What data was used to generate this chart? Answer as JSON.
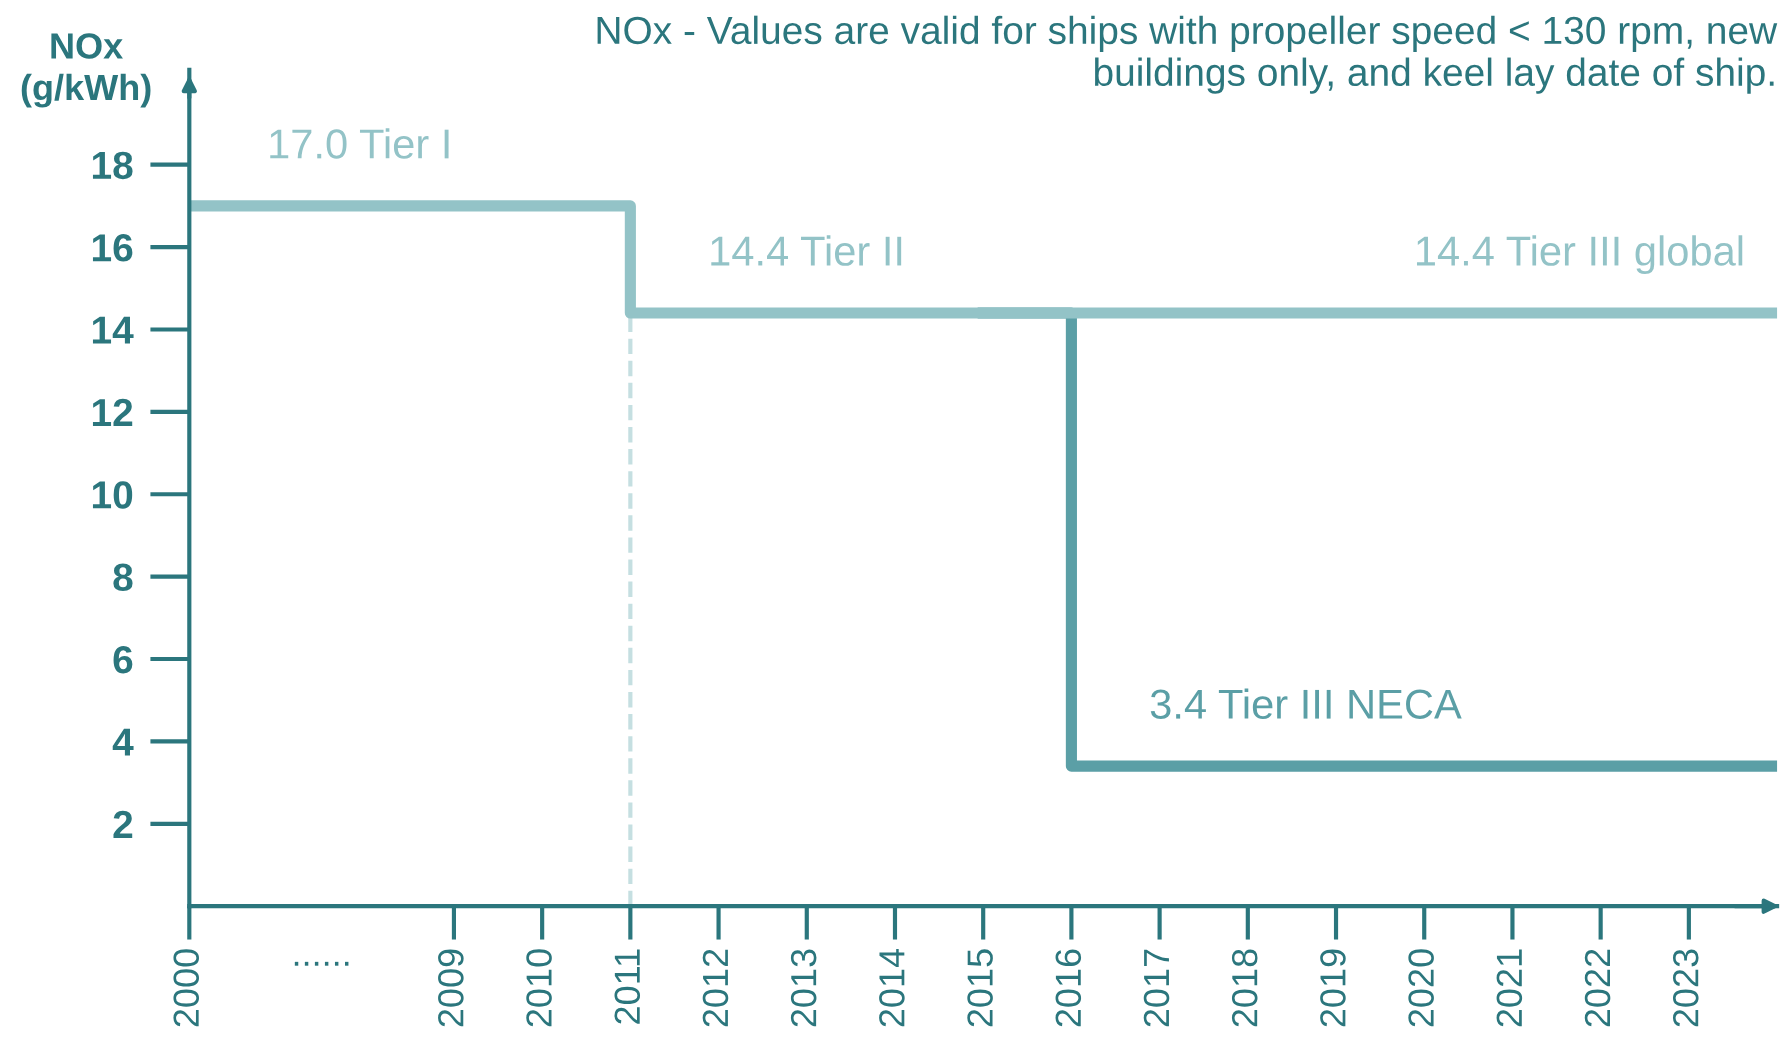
{
  "chart_data": {
    "type": "step",
    "title": "NOx - Values are valid for ships with propeller speed < 130 rpm, new buildings only, and keel lay date of ship.",
    "ylabel": "NOx\n(g/kWh)",
    "categories": [
      "2000",
      null,
      null,
      "2009",
      "2010",
      "2011",
      "2012",
      "2013",
      "2014",
      "2015",
      "2016",
      "2017",
      "2018",
      "2019",
      "2020",
      "2021",
      "2022",
      "2023",
      null
    ],
    "series": [
      {
        "color": "#5b9fa6",
        "values": [
          null,
          null,
          null,
          null,
          null,
          null,
          null,
          null,
          null,
          14.4,
          3.4,
          3.4,
          3.4,
          3.4,
          3.4,
          3.4,
          3.4,
          3.4,
          3.4
        ]
      },
      {
        "color": "#93c3c7",
        "values": [
          17.0,
          17.0,
          17.0,
          17.0,
          17.0,
          14.4,
          14.4,
          14.4,
          14.4,
          14.4,
          14.4,
          14.4,
          14.4,
          14.4,
          14.4,
          14.4,
          14.4,
          14.4,
          14.4
        ]
      }
    ],
    "ylim": [
      0,
      20.3
    ],
    "yticks": [
      2,
      4,
      6,
      8,
      10,
      12,
      14,
      16,
      18
    ],
    "grid": false,
    "line_style": "solid",
    "marker": "none",
    "ref_lines": [
      {
        "axis": "x",
        "value": "2011",
        "color": "#c5dfe1",
        "line_style": "dashed"
      }
    ],
    "annotations": [
      {
        "text": "17.0 Tier I",
        "x": "2000",
        "y": 17.0
      },
      {
        "text": "14.4 Tier II",
        "x": "2011",
        "y": 14.4
      },
      {
        "text": "14.4 Tier III global",
        "x": "2019",
        "y": 14.4
      },
      {
        "text": "3.4 Tier III NECA",
        "x": "2016",
        "y": 3.4
      },
      "......"
    ]
  }
}
